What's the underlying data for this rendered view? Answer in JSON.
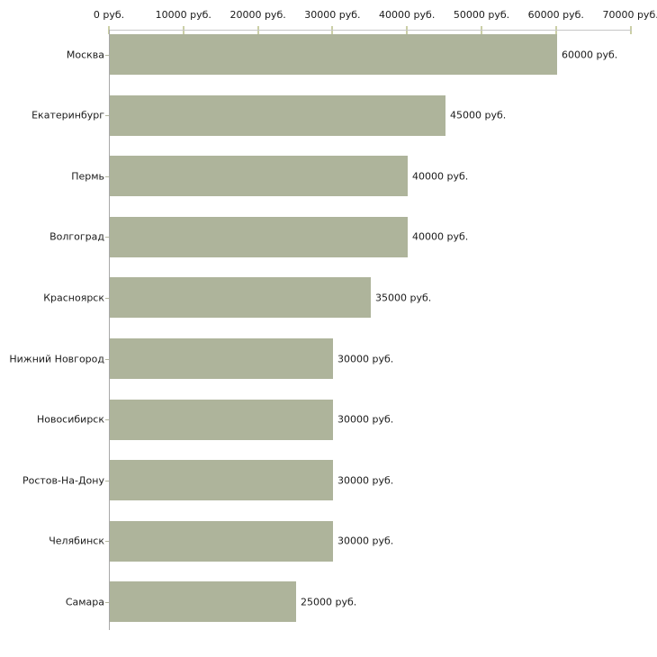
{
  "chart_data": {
    "type": "bar",
    "orientation": "horizontal",
    "title": "",
    "xlabel": "",
    "ylabel": "",
    "categories": [
      "Москва",
      "Екатеринбург",
      "Пермь",
      "Волгоград",
      "Красноярск",
      "Нижний Новгород",
      "Новосибирск",
      "Ростов-На-Дону",
      "Челябинск",
      "Самара"
    ],
    "values": [
      60000,
      45000,
      40000,
      40000,
      35000,
      30000,
      30000,
      30000,
      30000,
      25000
    ],
    "value_labels": [
      "60000 руб.",
      "45000 руб.",
      "40000 руб.",
      "40000 руб.",
      "35000 руб.",
      "30000 руб.",
      "30000 руб.",
      "30000 руб.",
      "30000 руб.",
      "25000 руб."
    ],
    "x_ticks": [
      0,
      10000,
      20000,
      30000,
      40000,
      50000,
      60000,
      70000
    ],
    "x_tick_labels": [
      "0 руб.",
      "10000 руб.",
      "20000 руб.",
      "30000 руб.",
      "40000 руб.",
      "50000 руб.",
      "60000 руб.",
      "70000 руб."
    ],
    "xlim": [
      0,
      70000
    ],
    "axis_position": "top",
    "grid": false,
    "legend": false
  },
  "colors": {
    "bar_fill": "#aeb49b",
    "x_axis_line": "#c6c6c6",
    "y_axis_line": "#a8a8a8",
    "x_tick": "#cbcfa6",
    "y_tick": "#b3b69e",
    "text": "#1a1a1a",
    "background": "#ffffff"
  }
}
